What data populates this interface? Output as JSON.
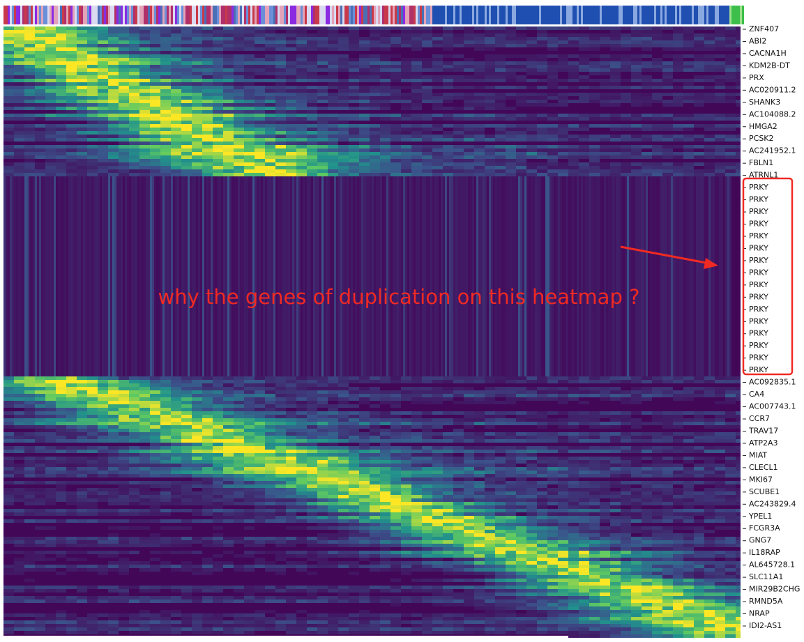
{
  "genes": [
    "ZNF407",
    "ABI2",
    "CACNA1H",
    "KDM2B-DT",
    "PRX",
    "AC020911.2",
    "SHANK3",
    "AC104088.2",
    "HMGA2",
    "PCSK2",
    "AC241952.1",
    "FBLN1",
    "ATRNL1",
    "PRKY",
    "PRKY",
    "PRKY",
    "PRKY",
    "PRKY",
    "PRKY",
    "PRKY",
    "PRKY",
    "PRKY",
    "PRKY",
    "PRKY",
    "PRKY",
    "PRKY",
    "PRKY",
    "PRKY",
    "PRKY",
    "AC092835.1",
    "CA4",
    "AC007743.1",
    "CCR7",
    "TRAV17",
    "ATP2A3",
    "MIAT",
    "CLECL1",
    "MKI67",
    "SCUBE1",
    "AC243829.4",
    "YPEL1",
    "FCGR3A",
    "GNG7",
    "IL18RAP",
    "AL645728.1",
    "SLC11A1",
    "MIR29B2CHG",
    "RMND5A",
    "NRAP",
    "IDI2-AS1"
  ],
  "annotation": "why the genes of duplication on this heatmap ?"
}
